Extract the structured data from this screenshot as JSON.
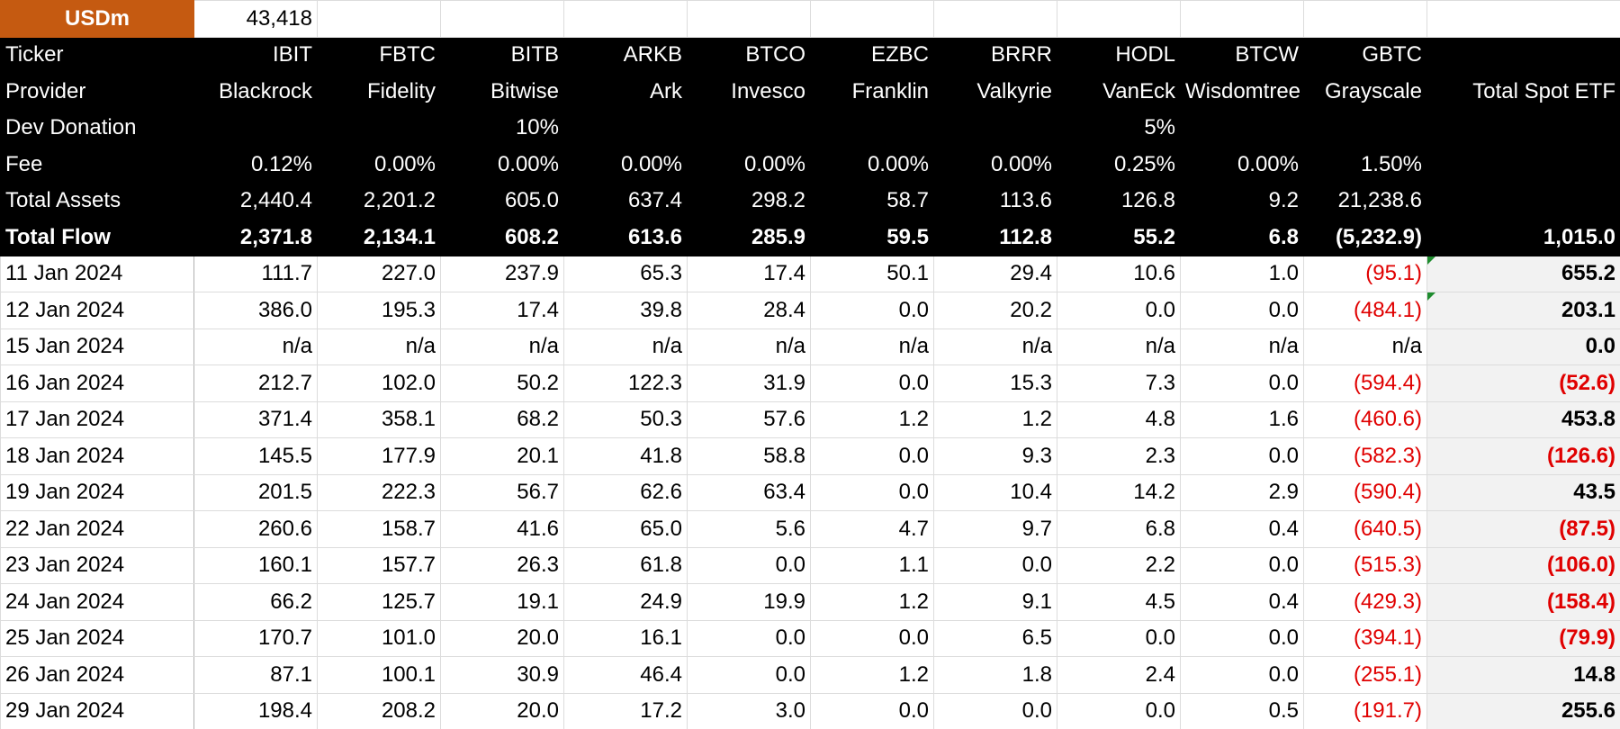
{
  "usd": {
    "label": "USDm",
    "value": "43,418"
  },
  "header_rows": [
    {
      "label": "Ticker",
      "cells": [
        "IBIT",
        "FBTC",
        "BITB",
        "ARKB",
        "BTCO",
        "EZBC",
        "BRRR",
        "HODL",
        "BTCW",
        "GBTC"
      ],
      "total": null
    },
    {
      "label": "Provider",
      "cells": [
        "Blackrock",
        "Fidelity",
        "Bitwise",
        "Ark",
        "Invesco",
        "Franklin",
        "Valkyrie",
        "VanEck",
        "Wisdomtree",
        "Grayscale"
      ],
      "total": "Total Spot ETF"
    },
    {
      "label": "Dev Donation",
      "cells": [
        null,
        null,
        "10%",
        null,
        null,
        null,
        null,
        "5%",
        null,
        null
      ],
      "total": null
    },
    {
      "label": "Fee",
      "cells": [
        "0.12%",
        "0.00%",
        "0.00%",
        "0.00%",
        "0.00%",
        "0.00%",
        "0.00%",
        "0.25%",
        "0.00%",
        "1.50%"
      ],
      "total": null
    },
    {
      "label": "Total Assets",
      "cells": [
        "2,440.4",
        "2,201.2",
        "605.0",
        "637.4",
        "298.2",
        "58.7",
        "113.6",
        "126.8",
        "9.2",
        "21,238.6"
      ],
      "total": null
    },
    {
      "label": "Total Flow",
      "cells": [
        "2,371.8",
        "2,134.1",
        "608.2",
        "613.6",
        "285.9",
        "59.5",
        "112.8",
        "55.2",
        "6.8",
        "(5,232.9)"
      ],
      "total": "1,015.0"
    }
  ],
  "rows": [
    {
      "date": "11 Jan 2024",
      "cells": [
        "111.7",
        "227.0",
        "237.9",
        "65.3",
        "17.4",
        "50.1",
        "29.4",
        "10.6",
        "1.0",
        "(95.1)"
      ],
      "total": "655.2"
    },
    {
      "date": "12 Jan 2024",
      "cells": [
        "386.0",
        "195.3",
        "17.4",
        "39.8",
        "28.4",
        "0.0",
        "20.2",
        "0.0",
        "0.0",
        "(484.1)"
      ],
      "total": "203.1"
    },
    {
      "date": "15 Jan 2024",
      "cells": [
        "n/a",
        "n/a",
        "n/a",
        "n/a",
        "n/a",
        "n/a",
        "n/a",
        "n/a",
        "n/a",
        "n/a"
      ],
      "total": "0.0"
    },
    {
      "date": "16 Jan 2024",
      "cells": [
        "212.7",
        "102.0",
        "50.2",
        "122.3",
        "31.9",
        "0.0",
        "15.3",
        "7.3",
        "0.0",
        "(594.4)"
      ],
      "total": "(52.6)"
    },
    {
      "date": "17 Jan 2024",
      "cells": [
        "371.4",
        "358.1",
        "68.2",
        "50.3",
        "57.6",
        "1.2",
        "1.2",
        "4.8",
        "1.6",
        "(460.6)"
      ],
      "total": "453.8"
    },
    {
      "date": "18 Jan 2024",
      "cells": [
        "145.5",
        "177.9",
        "20.1",
        "41.8",
        "58.8",
        "0.0",
        "9.3",
        "2.3",
        "0.0",
        "(582.3)"
      ],
      "total": "(126.6)"
    },
    {
      "date": "19 Jan 2024",
      "cells": [
        "201.5",
        "222.3",
        "56.7",
        "62.6",
        "63.4",
        "0.0",
        "10.4",
        "14.2",
        "2.9",
        "(590.4)"
      ],
      "total": "43.5"
    },
    {
      "date": "22 Jan 2024",
      "cells": [
        "260.6",
        "158.7",
        "41.6",
        "65.0",
        "5.6",
        "4.7",
        "9.7",
        "6.8",
        "0.4",
        "(640.5)"
      ],
      "total": "(87.5)"
    },
    {
      "date": "23 Jan 2024",
      "cells": [
        "160.1",
        "157.7",
        "26.3",
        "61.8",
        "0.0",
        "1.1",
        "0.0",
        "2.2",
        "0.0",
        "(515.3)"
      ],
      "total": "(106.0)"
    },
    {
      "date": "24 Jan 2024",
      "cells": [
        "66.2",
        "125.7",
        "19.1",
        "24.9",
        "19.9",
        "1.2",
        "9.1",
        "4.5",
        "0.4",
        "(429.3)"
      ],
      "total": "(158.4)"
    },
    {
      "date": "25 Jan 2024",
      "cells": [
        "170.7",
        "101.0",
        "20.0",
        "16.1",
        "0.0",
        "0.0",
        "6.5",
        "0.0",
        "0.0",
        "(394.1)"
      ],
      "total": "(79.9)"
    },
    {
      "date": "26 Jan 2024",
      "cells": [
        "87.1",
        "100.1",
        "30.9",
        "46.4",
        "0.0",
        "1.2",
        "1.8",
        "2.4",
        "0.0",
        "(255.1)"
      ],
      "total": "14.8"
    },
    {
      "date": "29 Jan 2024",
      "cells": [
        "198.4",
        "208.2",
        "20.0",
        "17.2",
        "3.0",
        "0.0",
        "0.0",
        "0.0",
        "0.5",
        "(191.7)"
      ],
      "total": "255.6"
    }
  ]
}
